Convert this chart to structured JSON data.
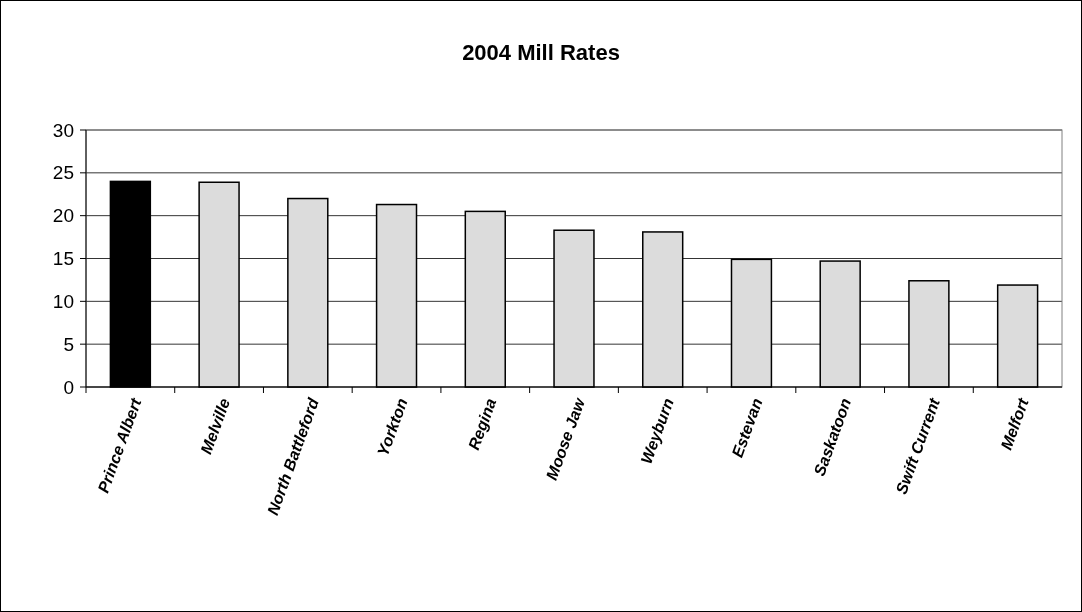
{
  "chart_data": {
    "type": "bar",
    "title": "2004 Mill Rates",
    "categories": [
      "Prince Albert",
      "Melville",
      "North Battleford",
      "Yorkton",
      "Regina",
      "Moose Jaw",
      "Weyburn",
      "Estevan",
      "Saskatoon",
      "Swift Current",
      "Melfort"
    ],
    "values": [
      24.0,
      23.9,
      22.0,
      21.3,
      20.5,
      18.3,
      18.1,
      14.9,
      14.7,
      12.4,
      11.9
    ],
    "colors": [
      "#000000",
      "#dcdcdc",
      "#dcdcdc",
      "#dcdcdc",
      "#dcdcdc",
      "#dcdcdc",
      "#dcdcdc",
      "#dcdcdc",
      "#dcdcdc",
      "#dcdcdc",
      "#dcdcdc"
    ],
    "ylim": [
      0,
      30
    ],
    "yticks": [
      0,
      5,
      10,
      15,
      20,
      25,
      30
    ],
    "grid": "y"
  }
}
